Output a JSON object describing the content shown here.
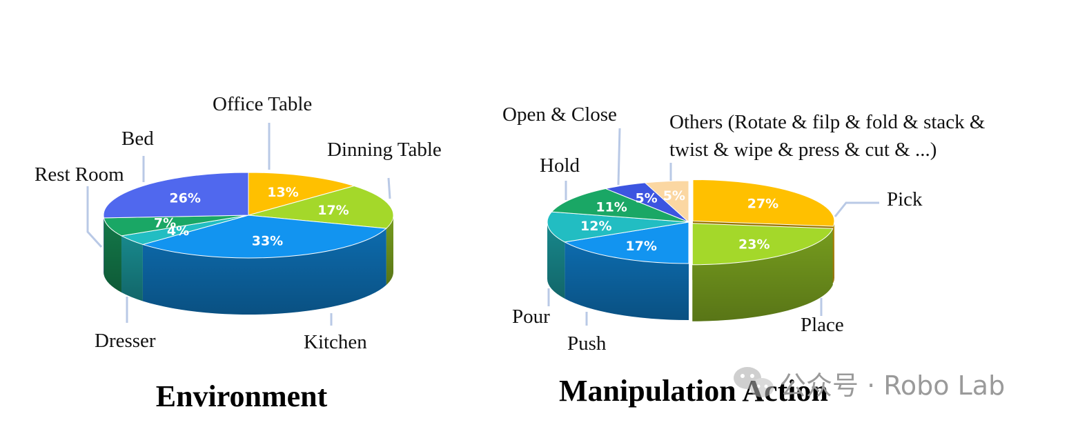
{
  "chart_data": [
    {
      "type": "pie",
      "title": "Environment",
      "slices": [
        {
          "label": "Office Table",
          "value": 13,
          "color": "#FFC000"
        },
        {
          "label": "Dinning Table",
          "value": 17,
          "color": "#A4D82A"
        },
        {
          "label": "Kitchen",
          "value": 33,
          "color": "#1294F0"
        },
        {
          "label": "Dresser",
          "value": 4,
          "color": "#22BDC2"
        },
        {
          "label": "Rest Room",
          "value": 7,
          "color": "#1AA765"
        },
        {
          "label": "Bed",
          "value": 26,
          "color": "#5068EE"
        }
      ]
    },
    {
      "type": "pie",
      "title": "Manipulation Action",
      "slices": [
        {
          "label": "Pick",
          "value": 27,
          "color": "#FFC000"
        },
        {
          "label": "Place",
          "value": 23,
          "color": "#A4D82A"
        },
        {
          "label": "Push",
          "value": 17,
          "color": "#1294F0"
        },
        {
          "label": "Pour",
          "value": 12,
          "color": "#22BDC2"
        },
        {
          "label": "Hold",
          "value": 11,
          "color": "#1AA765"
        },
        {
          "label": "Open & Close",
          "value": 5,
          "color": "#3C55E0"
        },
        {
          "label": "Others (Rotate & filp & fold & stack & twist & wipe & press & cut & ...)",
          "value": 5,
          "color": "#FBD7A2"
        }
      ]
    }
  ],
  "labels": {
    "env": {
      "office_table": "Office Table",
      "dinning_table": "Dinning Table",
      "kitchen": "Kitchen",
      "dresser": "Dresser",
      "rest_room": "Rest Room",
      "bed": "Bed"
    },
    "act": {
      "pick": "Pick",
      "place": "Place",
      "push": "Push",
      "pour": "Pour",
      "hold": "Hold",
      "open_close": "Open & Close",
      "others_line1": "Others (Rotate & filp & fold & stack &",
      "others_line2": "twist & wipe & press & cut & ...)"
    }
  },
  "watermark": {
    "text": "公众号 · Robo Lab",
    "icon": "wechat-icon"
  }
}
